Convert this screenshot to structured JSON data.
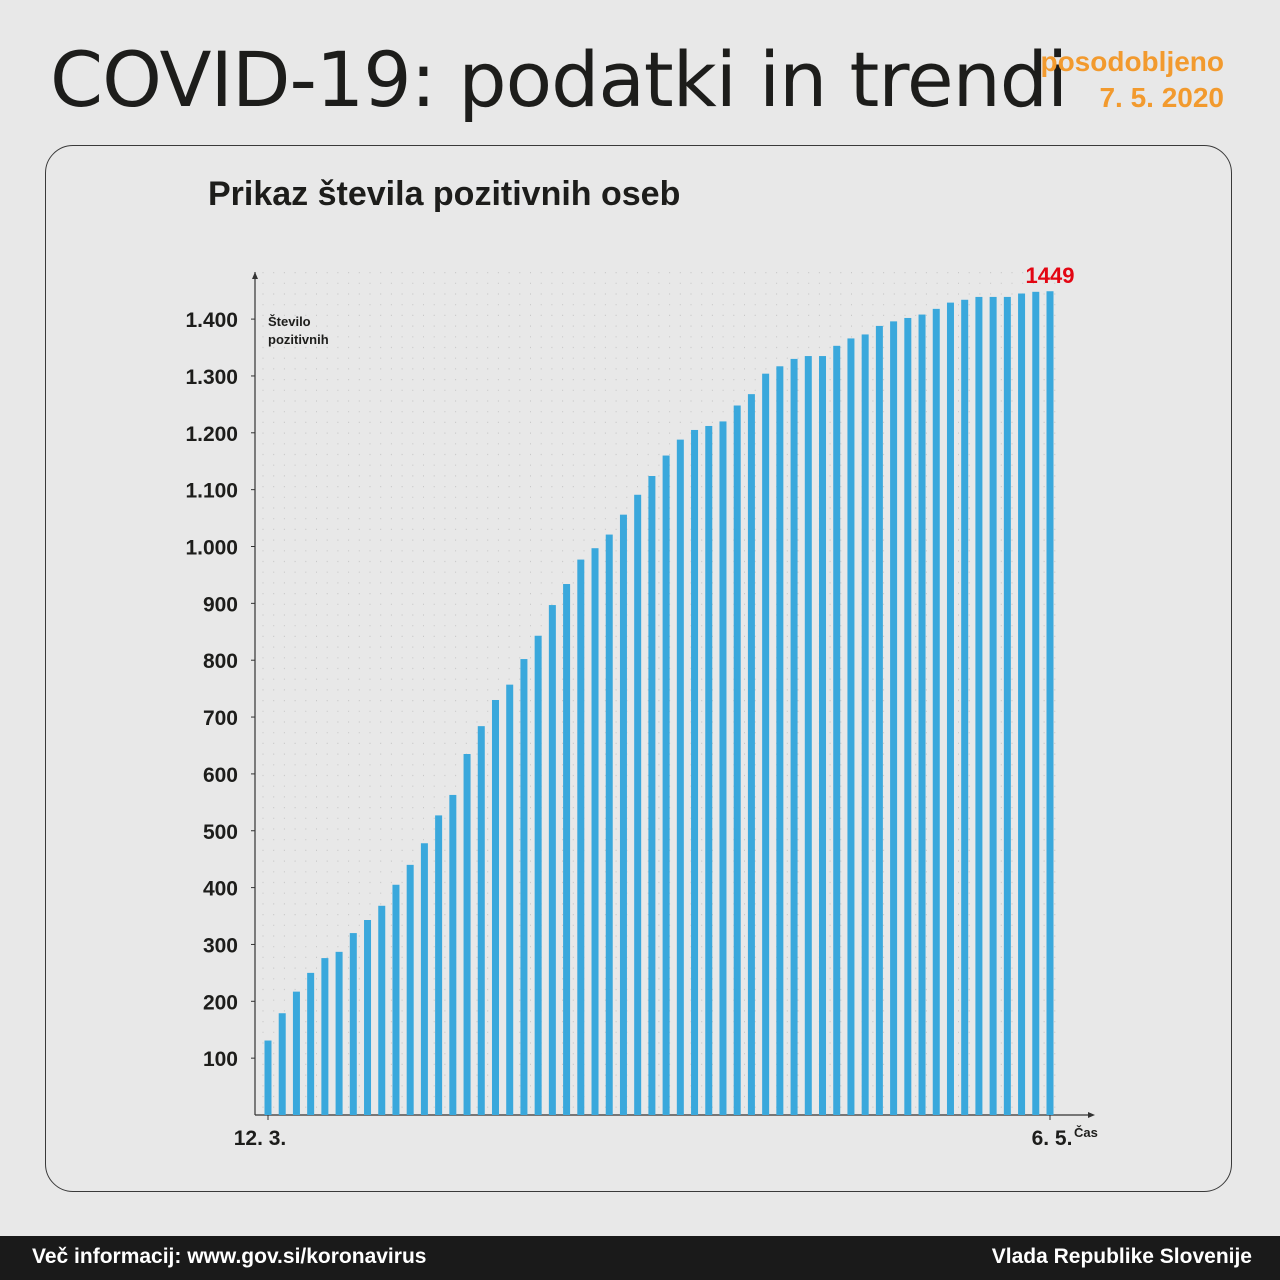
{
  "header": {
    "title": "COVID-19: podatki in trendi",
    "updated_label": "posodobljeno",
    "updated_date": "7. 5. 2020"
  },
  "chart_data": {
    "type": "bar",
    "title": "Prikaz števila pozitivnih oseb",
    "ylabel": "Število pozitivnih",
    "xlabel": "Čas",
    "x_start_label": "12. 3.",
    "x_end_label": "6. 5.",
    "ylim": [
      0,
      1450
    ],
    "yticks": [
      {
        "value": 100,
        "label": "100"
      },
      {
        "value": 200,
        "label": "200"
      },
      {
        "value": 300,
        "label": "300"
      },
      {
        "value": 400,
        "label": "400"
      },
      {
        "value": 500,
        "label": "500"
      },
      {
        "value": 600,
        "label": "600"
      },
      {
        "value": 700,
        "label": "700"
      },
      {
        "value": 800,
        "label": "800"
      },
      {
        "value": 900,
        "label": "900"
      },
      {
        "value": 1000,
        "label": "1.000"
      },
      {
        "value": 1100,
        "label": "1.100"
      },
      {
        "value": 1200,
        "label": "1.200"
      },
      {
        "value": 1300,
        "label": "1.300"
      },
      {
        "value": 1400,
        "label": "1.400"
      }
    ],
    "grid": true,
    "bar_color": "#3aa8dc",
    "highlight_color": "#e30613",
    "last_value_label": "1449",
    "values": [
      131,
      179,
      217,
      250,
      276,
      287,
      320,
      343,
      368,
      405,
      440,
      478,
      527,
      563,
      635,
      684,
      730,
      757,
      802,
      843,
      897,
      934,
      977,
      997,
      1021,
      1056,
      1091,
      1124,
      1160,
      1188,
      1205,
      1212,
      1220,
      1248,
      1268,
      1304,
      1317,
      1330,
      1335,
      1335,
      1353,
      1366,
      1373,
      1388,
      1396,
      1402,
      1408,
      1418,
      1429,
      1434,
      1439,
      1439,
      1439,
      1445,
      1448,
      1449
    ]
  },
  "footer": {
    "left": "Več informacij: www.gov.si/koronavirus",
    "right": "Vlada Republike Slovenije"
  }
}
